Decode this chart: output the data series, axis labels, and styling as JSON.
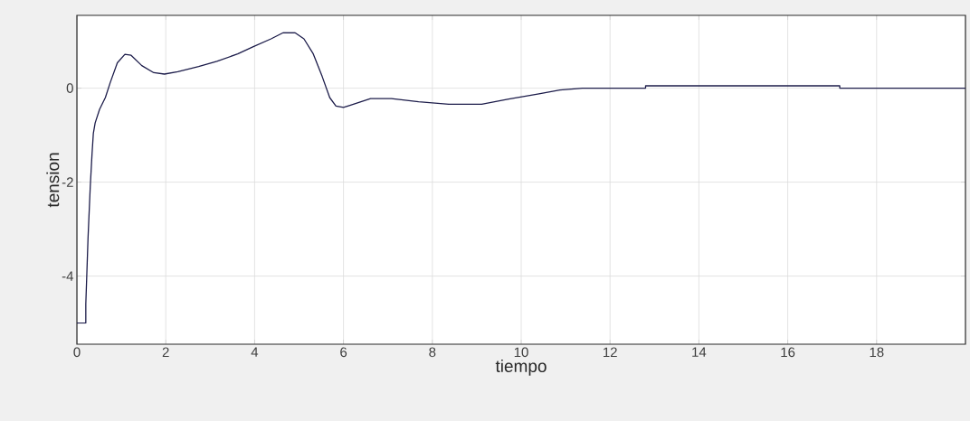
{
  "chart_data": {
    "type": "line",
    "xlabel": "tiempo",
    "ylabel": "tension",
    "xlim": [
      0,
      20
    ],
    "ylim": [
      -5.45,
      1.55
    ],
    "xticks": [
      0,
      2,
      4,
      6,
      8,
      10,
      12,
      14,
      16,
      18
    ],
    "yticks": [
      -4,
      -2,
      0
    ],
    "grid": true,
    "marker": "none",
    "line_style": "solid",
    "series": [
      {
        "color": "#1c1c4a",
        "x": [
          0,
          0.2,
          0.2,
          0.25,
          0.3,
          0.34,
          0.37,
          0.41,
          0.51,
          0.64,
          0.75,
          0.91,
          1.08,
          1.22,
          1.46,
          1.73,
          1.97,
          2.27,
          2.74,
          3.15,
          3.62,
          3.96,
          4.37,
          4.64,
          4.91,
          5.11,
          5.32,
          5.52,
          5.69,
          5.83,
          6.0,
          6.13,
          6.61,
          7.08,
          7.69,
          8.37,
          9.11,
          9.72,
          10.4,
          10.87,
          11.38,
          12.09,
          12.8,
          12.8,
          17.17,
          17.17,
          20
        ],
        "values": [
          -5,
          -5,
          -4.6,
          -3.19,
          -2.1,
          -1.4,
          -0.96,
          -0.74,
          -0.45,
          -0.2,
          0.12,
          0.54,
          0.72,
          0.7,
          0.48,
          0.33,
          0.3,
          0.35,
          0.46,
          0.57,
          0.73,
          0.88,
          1.05,
          1.18,
          1.18,
          1.05,
          0.73,
          0.25,
          -0.2,
          -0.38,
          -0.41,
          -0.37,
          -0.22,
          -0.22,
          -0.29,
          -0.34,
          -0.34,
          -0.23,
          -0.12,
          -0.04,
          0,
          0,
          0,
          0.05,
          0.05,
          0,
          0
        ]
      }
    ]
  }
}
